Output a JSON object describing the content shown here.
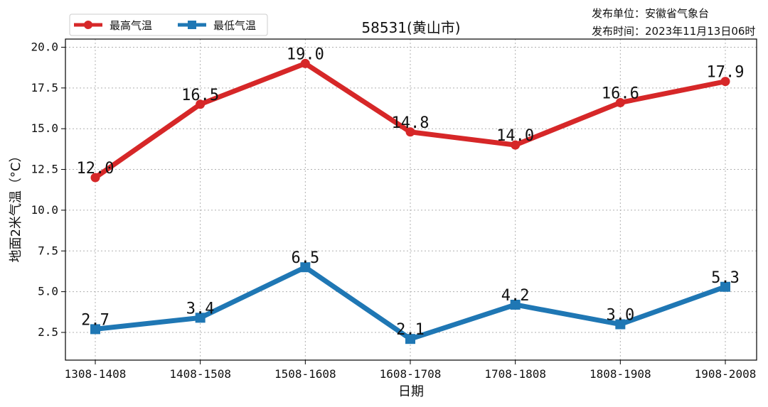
{
  "chart_data": {
    "type": "line",
    "title": "58531(黄山市)",
    "xlabel": "日期",
    "ylabel": "地面2米气温（°C）",
    "categories": [
      "1308-1408",
      "1408-1508",
      "1508-1608",
      "1608-1708",
      "1708-1808",
      "1808-1908",
      "1908-2008"
    ],
    "ylim": [
      0.8,
      20.5
    ],
    "yticks": [
      "2.5",
      "5.0",
      "7.5",
      "10.0",
      "12.5",
      "15.0",
      "17.5",
      "20.0"
    ],
    "grid": true,
    "legend_position": "top-left",
    "series": [
      {
        "name": "最高气温",
        "color": "#d62728",
        "marker": "circle",
        "values": [
          12.0,
          16.5,
          19.0,
          14.8,
          14.0,
          16.6,
          17.9
        ],
        "labels": [
          "12.0",
          "16.5",
          "19.0",
          "14.8",
          "14.0",
          "16.6",
          "17.9"
        ]
      },
      {
        "name": "最低气温",
        "color": "#1f77b4",
        "marker": "square",
        "values": [
          2.7,
          3.4,
          6.5,
          2.1,
          4.2,
          3.0,
          5.3
        ],
        "labels": [
          "2.7",
          "3.4",
          "6.5",
          "2.1",
          "4.2",
          "3.0",
          "5.3"
        ]
      }
    ]
  },
  "info": {
    "publisher": "发布单位：安徽省气象台",
    "publish_time": "发布时间：2023年11月13日06时"
  }
}
